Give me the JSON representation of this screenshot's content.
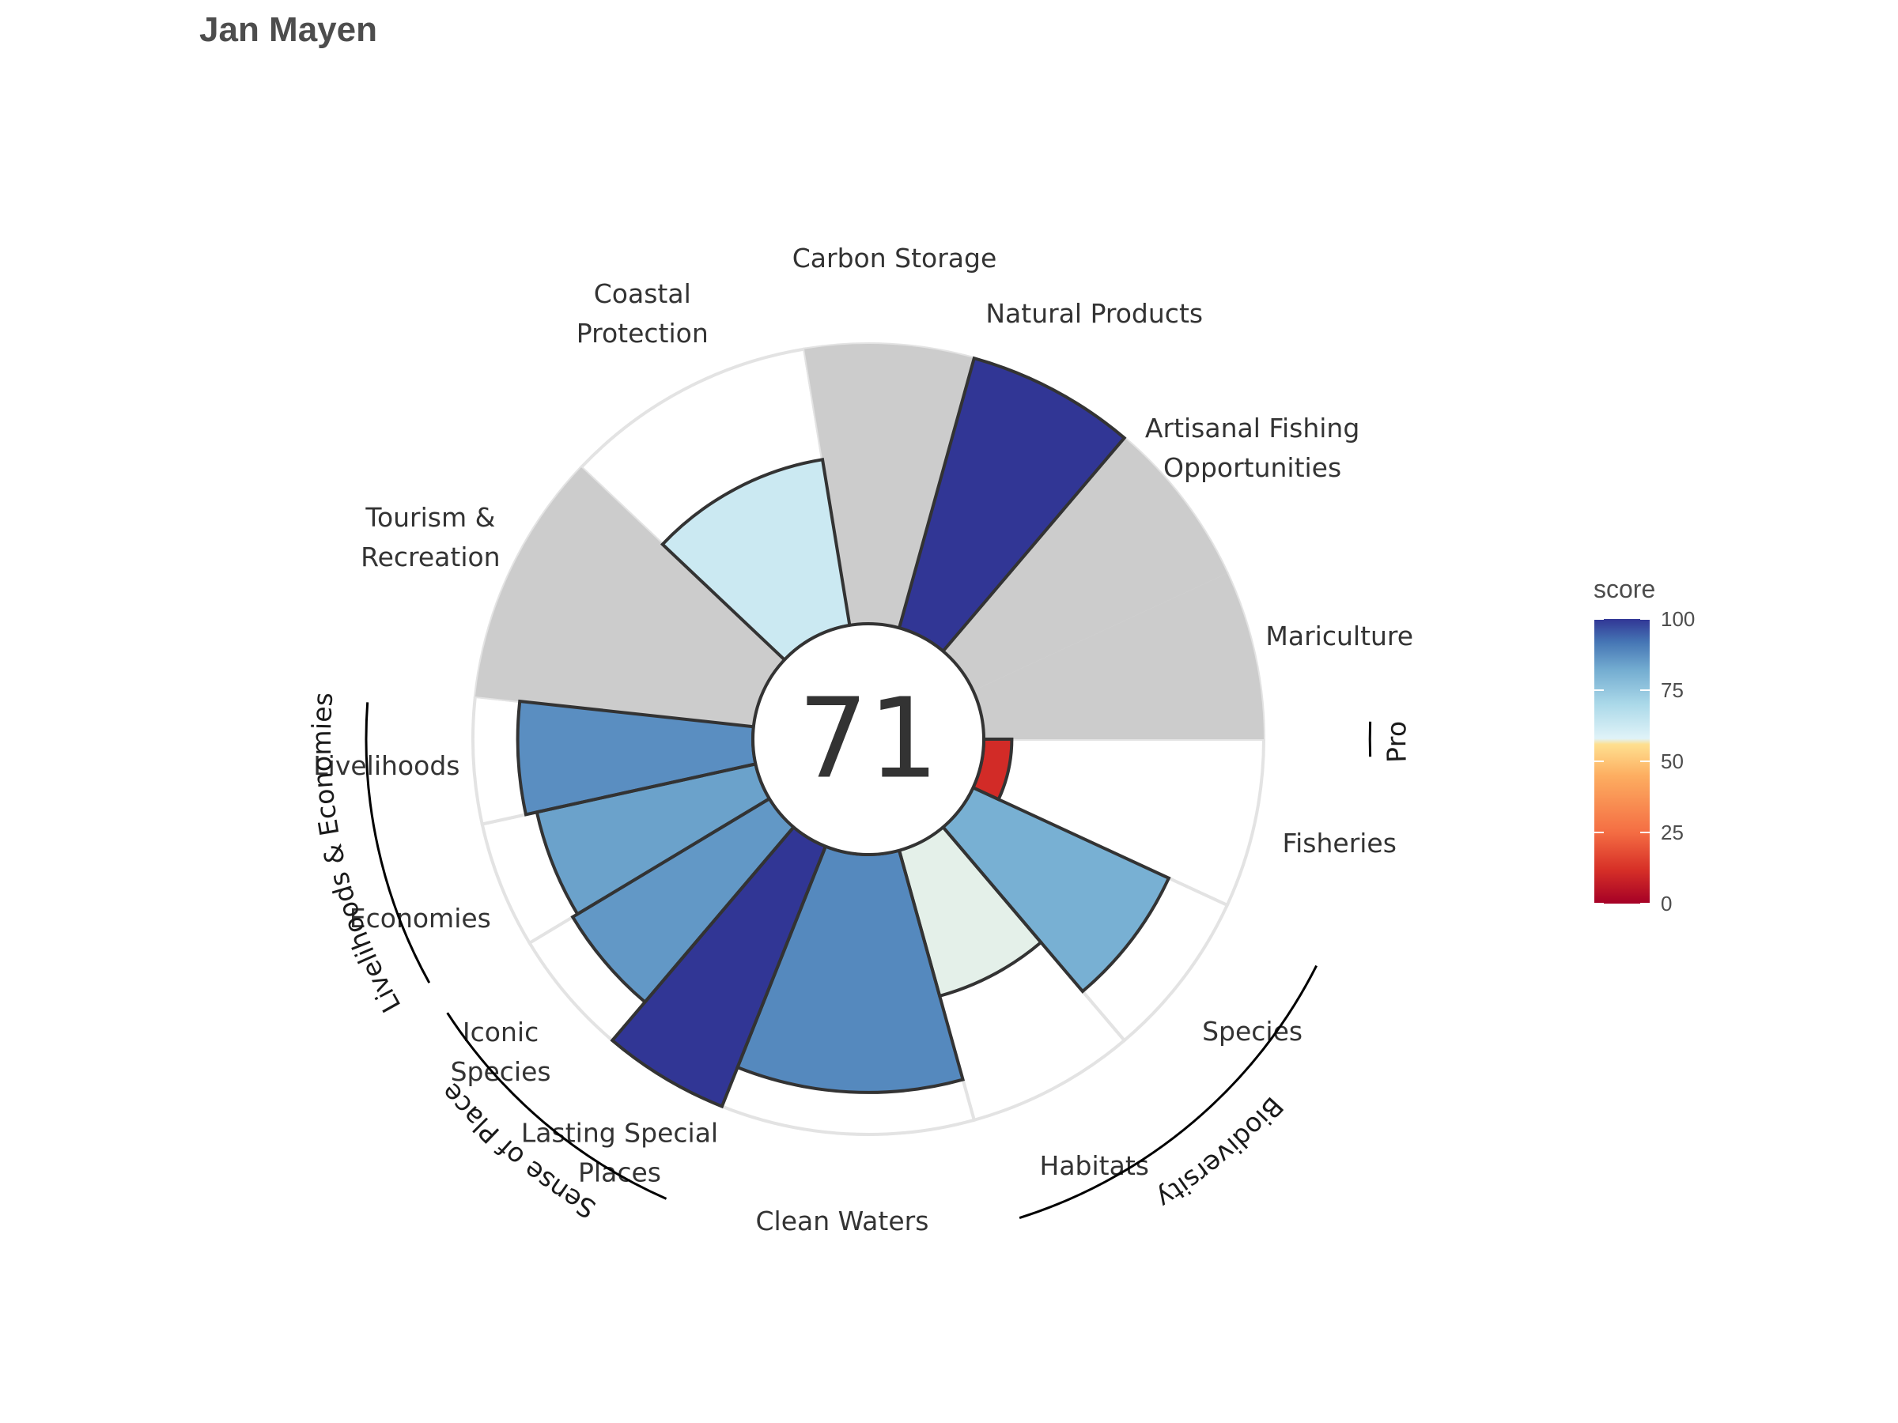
{
  "chart_data": {
    "type": "bar",
    "polar": true,
    "title": "Jan Mayen",
    "center_score": "71",
    "scale": {
      "ylim": [
        0,
        100
      ]
    },
    "legend": {
      "title": "score",
      "ticks": [
        "100",
        "75",
        "50",
        "25",
        "0"
      ],
      "placement": "right",
      "colors": [
        "#A50026",
        "#D73027",
        "#F46D43",
        "#FDAE61",
        "#FEE090",
        "#E0F3F8",
        "#ABD9E9",
        "#74ADD1",
        "#4575B4",
        "#313695"
      ]
    },
    "colors": {
      "na_fill": "#cccccc",
      "ring_stroke": "#e3e3e3",
      "outline": "#333333"
    },
    "goals": [
      {
        "name": "Fisheries",
        "label": [
          "Fisheries"
        ],
        "score": 10,
        "weight": 1,
        "na": false
      },
      {
        "name": "Species",
        "label": [
          "Species"
        ],
        "score": 77,
        "weight": 1,
        "na": false
      },
      {
        "name": "Habitats",
        "label": [
          "Habitats"
        ],
        "score": 54,
        "weight": 1,
        "na": false
      },
      {
        "name": "Clean Waters",
        "label": [
          "Clean Waters"
        ],
        "score": 85,
        "weight": 1.5,
        "na": false
      },
      {
        "name": "Lasting Special Places",
        "label": [
          "Lasting Special",
          "Places"
        ],
        "score": 100,
        "weight": 0.75,
        "na": false
      },
      {
        "name": "Iconic Species",
        "label": [
          "Iconic",
          "Species"
        ],
        "score": 82,
        "weight": 0.75,
        "na": false
      },
      {
        "name": "Economies",
        "label": [
          "Economies"
        ],
        "score": 80,
        "weight": 0.75,
        "na": false
      },
      {
        "name": "Livelihoods",
        "label": [
          "Livelihoods"
        ],
        "score": 84,
        "weight": 0.75,
        "na": false
      },
      {
        "name": "Tourism & Recreation",
        "label": [
          "Tourism &",
          "Recreation"
        ],
        "score": 100,
        "weight": 1.5,
        "na": true
      },
      {
        "name": "Coastal Protection",
        "label": [
          "Coastal",
          "Protection"
        ],
        "score": 60,
        "weight": 1.5,
        "na": false
      },
      {
        "name": "Carbon Storage",
        "label": [
          "Carbon Storage"
        ],
        "score": 100,
        "weight": 1,
        "na": true
      },
      {
        "name": "Natural Products",
        "label": [
          "Natural Products"
        ],
        "score": 100,
        "weight": 1,
        "na": false
      },
      {
        "name": "Artisanal Fishing Opportunities",
        "label": [
          "Artisanal Fishing",
          "Opportunities"
        ],
        "score": 100,
        "weight": 1,
        "na": true
      },
      {
        "name": "Mariculture",
        "label": [
          "Mariculture"
        ],
        "score": 100,
        "weight": 1,
        "na": true
      }
    ],
    "groups": [
      {
        "name": "Food Provision",
        "goals": [
          "Fisheries",
          "Mariculture"
        ]
      },
      {
        "name": "Biodiversity",
        "goals": [
          "Species",
          "Habitats"
        ]
      },
      {
        "name": "Sense of Place",
        "goals": [
          "Lasting Special Places",
          "Iconic Species"
        ]
      },
      {
        "name": "Livelihoods & Economies",
        "goals": [
          "Economies",
          "Livelihoods"
        ]
      }
    ]
  }
}
